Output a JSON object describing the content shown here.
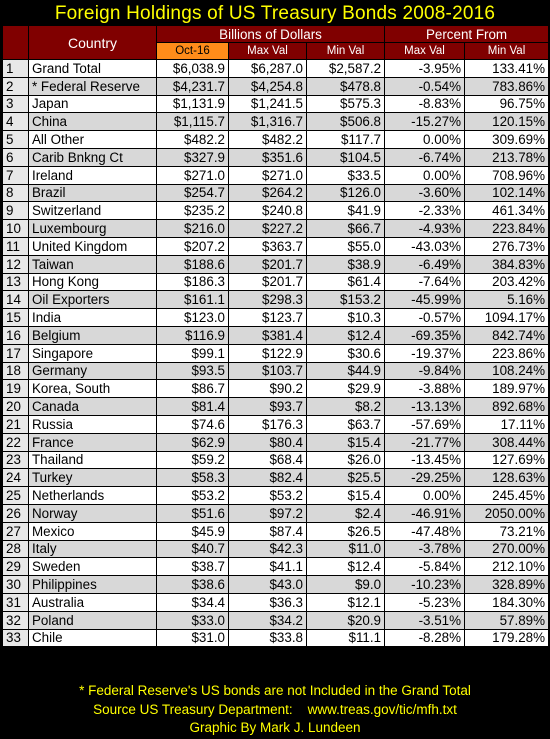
{
  "title": "Foreign Holdings of US Treasury Bonds 2008-2016",
  "header": {
    "country": "Country",
    "billions": "Billions of Dollars",
    "percent_from": "Percent From",
    "oct16": "Oct-16",
    "max_val": "Max Val",
    "min_val": "Min Val",
    "pct_max": "Max Val",
    "pct_min": "Min Val"
  },
  "chart_data": {
    "type": "table",
    "title": "Foreign Holdings of US Treasury Bonds 2008-2016",
    "columns": [
      "",
      "Country",
      "Oct-16",
      "Max Val",
      "Min Val",
      "Max Val",
      "Min Val"
    ],
    "rows": [
      [
        "1",
        "Grand Total",
        "$6,038.9",
        "$6,287.0",
        "$2,587.2",
        "-3.95%",
        "133.41%"
      ],
      [
        "2",
        "* Federal Reserve",
        "$4,231.7",
        "$4,254.8",
        "$478.8",
        "-0.54%",
        "783.86%"
      ],
      [
        "3",
        "Japan",
        "$1,131.9",
        "$1,241.5",
        "$575.3",
        "-8.83%",
        "96.75%"
      ],
      [
        "4",
        "China",
        "$1,115.7",
        "$1,316.7",
        "$506.8",
        "-15.27%",
        "120.15%"
      ],
      [
        "5",
        "All Other",
        "$482.2",
        "$482.2",
        "$117.7",
        "0.00%",
        "309.69%"
      ],
      [
        "6",
        "Carib Bnkng Ct",
        "$327.9",
        "$351.6",
        "$104.5",
        "-6.74%",
        "213.78%"
      ],
      [
        "7",
        "Ireland",
        "$271.0",
        "$271.0",
        "$33.5",
        "0.00%",
        "708.96%"
      ],
      [
        "8",
        "Brazil",
        "$254.7",
        "$264.2",
        "$126.0",
        "-3.60%",
        "102.14%"
      ],
      [
        "9",
        "Switzerland",
        "$235.2",
        "$240.8",
        "$41.9",
        "-2.33%",
        "461.34%"
      ],
      [
        "10",
        "Luxembourg",
        "$216.0",
        "$227.2",
        "$66.7",
        "-4.93%",
        "223.84%"
      ],
      [
        "11",
        "United Kingdom",
        "$207.2",
        "$363.7",
        "$55.0",
        "-43.03%",
        "276.73%"
      ],
      [
        "12",
        "Taiwan",
        "$188.6",
        "$201.7",
        "$38.9",
        "-6.49%",
        "384.83%"
      ],
      [
        "13",
        "Hong Kong",
        "$186.3",
        "$201.7",
        "$61.4",
        "-7.64%",
        "203.42%"
      ],
      [
        "14",
        "Oil Exporters",
        "$161.1",
        "$298.3",
        "$153.2",
        "-45.99%",
        "5.16%"
      ],
      [
        "15",
        "India",
        "$123.0",
        "$123.7",
        "$10.3",
        "-0.57%",
        "1094.17%"
      ],
      [
        "16",
        "Belgium",
        "$116.9",
        "$381.4",
        "$12.4",
        "-69.35%",
        "842.74%"
      ],
      [
        "17",
        "Singapore",
        "$99.1",
        "$122.9",
        "$30.6",
        "-19.37%",
        "223.86%"
      ],
      [
        "18",
        "Germany",
        "$93.5",
        "$103.7",
        "$44.9",
        "-9.84%",
        "108.24%"
      ],
      [
        "19",
        "Korea, South",
        "$86.7",
        "$90.2",
        "$29.9",
        "-3.88%",
        "189.97%"
      ],
      [
        "20",
        "Canada",
        "$81.4",
        "$93.7",
        "$8.2",
        "-13.13%",
        "892.68%"
      ],
      [
        "21",
        "Russia",
        "$74.6",
        "$176.3",
        "$63.7",
        "-57.69%",
        "17.11%"
      ],
      [
        "22",
        "France",
        "$62.9",
        "$80.4",
        "$15.4",
        "-21.77%",
        "308.44%"
      ],
      [
        "23",
        "Thailand",
        "$59.2",
        "$68.4",
        "$26.0",
        "-13.45%",
        "127.69%"
      ],
      [
        "24",
        "Turkey",
        "$58.3",
        "$82.4",
        "$25.5",
        "-29.25%",
        "128.63%"
      ],
      [
        "25",
        "Netherlands",
        "$53.2",
        "$53.2",
        "$15.4",
        "0.00%",
        "245.45%"
      ],
      [
        "26",
        "Norway",
        "$51.6",
        "$97.2",
        "$2.4",
        "-46.91%",
        "2050.00%"
      ],
      [
        "27",
        "Mexico",
        "$45.9",
        "$87.4",
        "$26.5",
        "-47.48%",
        "73.21%"
      ],
      [
        "28",
        "Italy",
        "$40.7",
        "$42.3",
        "$11.0",
        "-3.78%",
        "270.00%"
      ],
      [
        "29",
        "Sweden",
        "$38.7",
        "$41.1",
        "$12.4",
        "-5.84%",
        "212.10%"
      ],
      [
        "30",
        "Philippines",
        "$38.6",
        "$43.0",
        "$9.0",
        "-10.23%",
        "328.89%"
      ],
      [
        "31",
        "Australia",
        "$34.4",
        "$36.3",
        "$12.1",
        "-5.23%",
        "184.30%"
      ],
      [
        "32",
        "Poland",
        "$33.0",
        "$34.2",
        "$20.9",
        "-3.51%",
        "57.89%"
      ],
      [
        "33",
        "Chile",
        "$31.0",
        "$33.8",
        "$11.1",
        "-8.28%",
        "179.28%"
      ]
    ]
  },
  "footer": {
    "note": "* Federal Reserve's US bonds are not Included in the Grand Total",
    "source": "Source US Treasury Department:    www.treas.gov/tic/mfh.txt",
    "credit": "Graphic By Mark J. Lundeen"
  },
  "colors": {
    "background": "#000000",
    "title": "#ffff00",
    "header": "#800000",
    "oct_highlight": "#ff8c1a",
    "row_odd": "#ffffff",
    "row_even": "#d8d8d8"
  }
}
